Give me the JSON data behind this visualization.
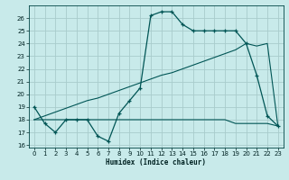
{
  "xlabel": "Humidex (Indice chaleur)",
  "bg_color": "#c8eaea",
  "grid_color": "#a8cccc",
  "line_color": "#005555",
  "xlim": [
    -0.5,
    23.5
  ],
  "ylim": [
    15.8,
    27.0
  ],
  "xticks": [
    0,
    1,
    2,
    3,
    4,
    5,
    6,
    7,
    8,
    9,
    10,
    11,
    12,
    13,
    14,
    15,
    16,
    17,
    18,
    19,
    20,
    21,
    22,
    23
  ],
  "yticks": [
    16,
    17,
    18,
    19,
    20,
    21,
    22,
    23,
    24,
    25,
    26
  ],
  "series_main_x": [
    0,
    1,
    2,
    3,
    4,
    5,
    6,
    7,
    8,
    9,
    10,
    11,
    12,
    13,
    14,
    15,
    16,
    17,
    18,
    19,
    20,
    21,
    22,
    23
  ],
  "series_main_y": [
    19.0,
    17.7,
    17.0,
    18.0,
    18.0,
    18.0,
    16.7,
    16.3,
    18.5,
    19.5,
    20.5,
    26.2,
    26.5,
    26.5,
    25.5,
    25.0,
    25.0,
    25.0,
    25.0,
    25.0,
    24.0,
    21.5,
    18.3,
    17.5
  ],
  "series_flat_x": [
    0,
    5,
    6,
    7,
    8,
    9,
    10,
    11,
    12,
    13,
    14,
    15,
    16,
    17,
    18,
    19,
    20,
    21,
    22,
    23
  ],
  "series_flat_y": [
    18.0,
    18.0,
    18.0,
    18.0,
    18.0,
    18.0,
    18.0,
    18.0,
    18.0,
    18.0,
    18.0,
    18.0,
    18.0,
    18.0,
    18.0,
    17.7,
    17.7,
    17.7,
    17.7,
    17.5
  ],
  "series_diag_x": [
    0,
    1,
    2,
    3,
    4,
    5,
    6,
    7,
    8,
    9,
    10,
    11,
    12,
    13,
    14,
    15,
    16,
    17,
    18,
    19,
    20,
    21,
    22,
    23
  ],
  "series_diag_y": [
    18.0,
    18.3,
    18.6,
    18.9,
    19.2,
    19.5,
    19.7,
    20.0,
    20.3,
    20.6,
    20.9,
    21.2,
    21.5,
    21.7,
    22.0,
    22.3,
    22.6,
    22.9,
    23.2,
    23.5,
    24.0,
    23.8,
    24.0,
    17.5
  ]
}
